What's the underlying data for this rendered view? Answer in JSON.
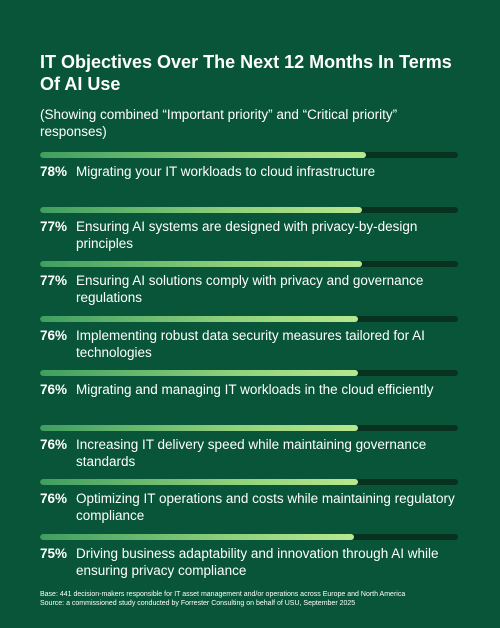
{
  "chart_data": {
    "type": "bar",
    "orientation": "horizontal",
    "title": "IT Objectives Over The Next 12 Months In Terms Of AI Use",
    "subtitle": "(Showing combined “Important priority” and “Critical priority” responses)",
    "xlim": [
      0,
      100
    ],
    "colors": {
      "background": "#085539",
      "track": "#06321f",
      "bar_start": "#3f9e60",
      "bar_end": "#b8e88f",
      "text": "#ffffff"
    },
    "rows": [
      {
        "label": "Migrating your IT workloads to cloud infrastructure",
        "value": 78,
        "value_label": "78%"
      },
      {
        "label": "Ensuring AI systems are designed with privacy-by-design principles",
        "value": 77,
        "value_label": "77%"
      },
      {
        "label": "Ensuring AI solutions comply with privacy and governance regulations",
        "value": 77,
        "value_label": "77%"
      },
      {
        "label": "Implementing robust data security measures tailored for AI technologies",
        "value": 76,
        "value_label": "76%"
      },
      {
        "label": "Migrating and managing IT workloads in the cloud efficiently",
        "value": 76,
        "value_label": "76%"
      },
      {
        "label": "Increasing IT delivery speed while maintaining governance standards",
        "value": 76,
        "value_label": "76%"
      },
      {
        "label": "Optimizing IT operations and costs while maintaining regulatory compliance",
        "value": 76,
        "value_label": "76%"
      },
      {
        "label": "Driving business adaptability and innovation through AI while ensuring privacy compliance",
        "value": 75,
        "value_label": "75%"
      }
    ]
  },
  "footer": {
    "base": "Base: 441 decision-makers responsible for IT asset management and/or operations across Europe and North America",
    "source": "Source: a commissioned study conducted by Forrester Consulting on behalf of USU, September 2025"
  }
}
